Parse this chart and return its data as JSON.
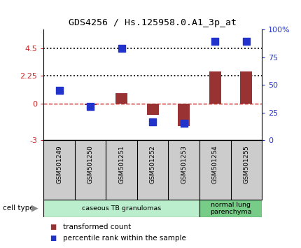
{
  "title": "GDS4256 / Hs.125958.0.A1_3p_at",
  "samples": [
    "GSM501249",
    "GSM501250",
    "GSM501251",
    "GSM501252",
    "GSM501253",
    "GSM501254",
    "GSM501255"
  ],
  "transformed_count": [
    0.0,
    -0.12,
    0.85,
    -0.95,
    -1.85,
    2.6,
    2.6
  ],
  "percentile_rank_left": [
    1.05,
    -0.25,
    4.48,
    -1.52,
    -1.62,
    5.05,
    5.05
  ],
  "ylim_left": [
    -3,
    6
  ],
  "ylim_right": [
    0,
    100
  ],
  "yticks_left": [
    -3,
    0,
    2.25,
    4.5
  ],
  "yticks_left_labels": [
    "-3",
    "0",
    "2.25",
    "4.5"
  ],
  "yticks_right": [
    0,
    25,
    50,
    75,
    100
  ],
  "yticks_right_labels": [
    "0",
    "25",
    "50",
    "75",
    "100%"
  ],
  "hlines": [
    0,
    2.25,
    4.5
  ],
  "hline_styles": [
    "dashed",
    "dotted",
    "dotted"
  ],
  "hline_colors": [
    "#cc2222",
    "#000000",
    "#000000"
  ],
  "bar_color": "#993333",
  "dot_color": "#2233cc",
  "cell_groups": [
    {
      "label": "caseous TB granulomas",
      "start": 0,
      "end": 5,
      "color": "#bbeecc"
    },
    {
      "label": "normal lung\nparenchyma",
      "start": 5,
      "end": 7,
      "color": "#77cc88"
    }
  ],
  "cell_type_label": "cell type",
  "legend_entries": [
    {
      "color": "#993333",
      "label": "transformed count"
    },
    {
      "color": "#2233cc",
      "label": "percentile rank within the sample"
    }
  ],
  "bar_width": 0.38,
  "dot_size": 55,
  "background_color": "#ffffff",
  "tick_area_color": "#cccccc"
}
